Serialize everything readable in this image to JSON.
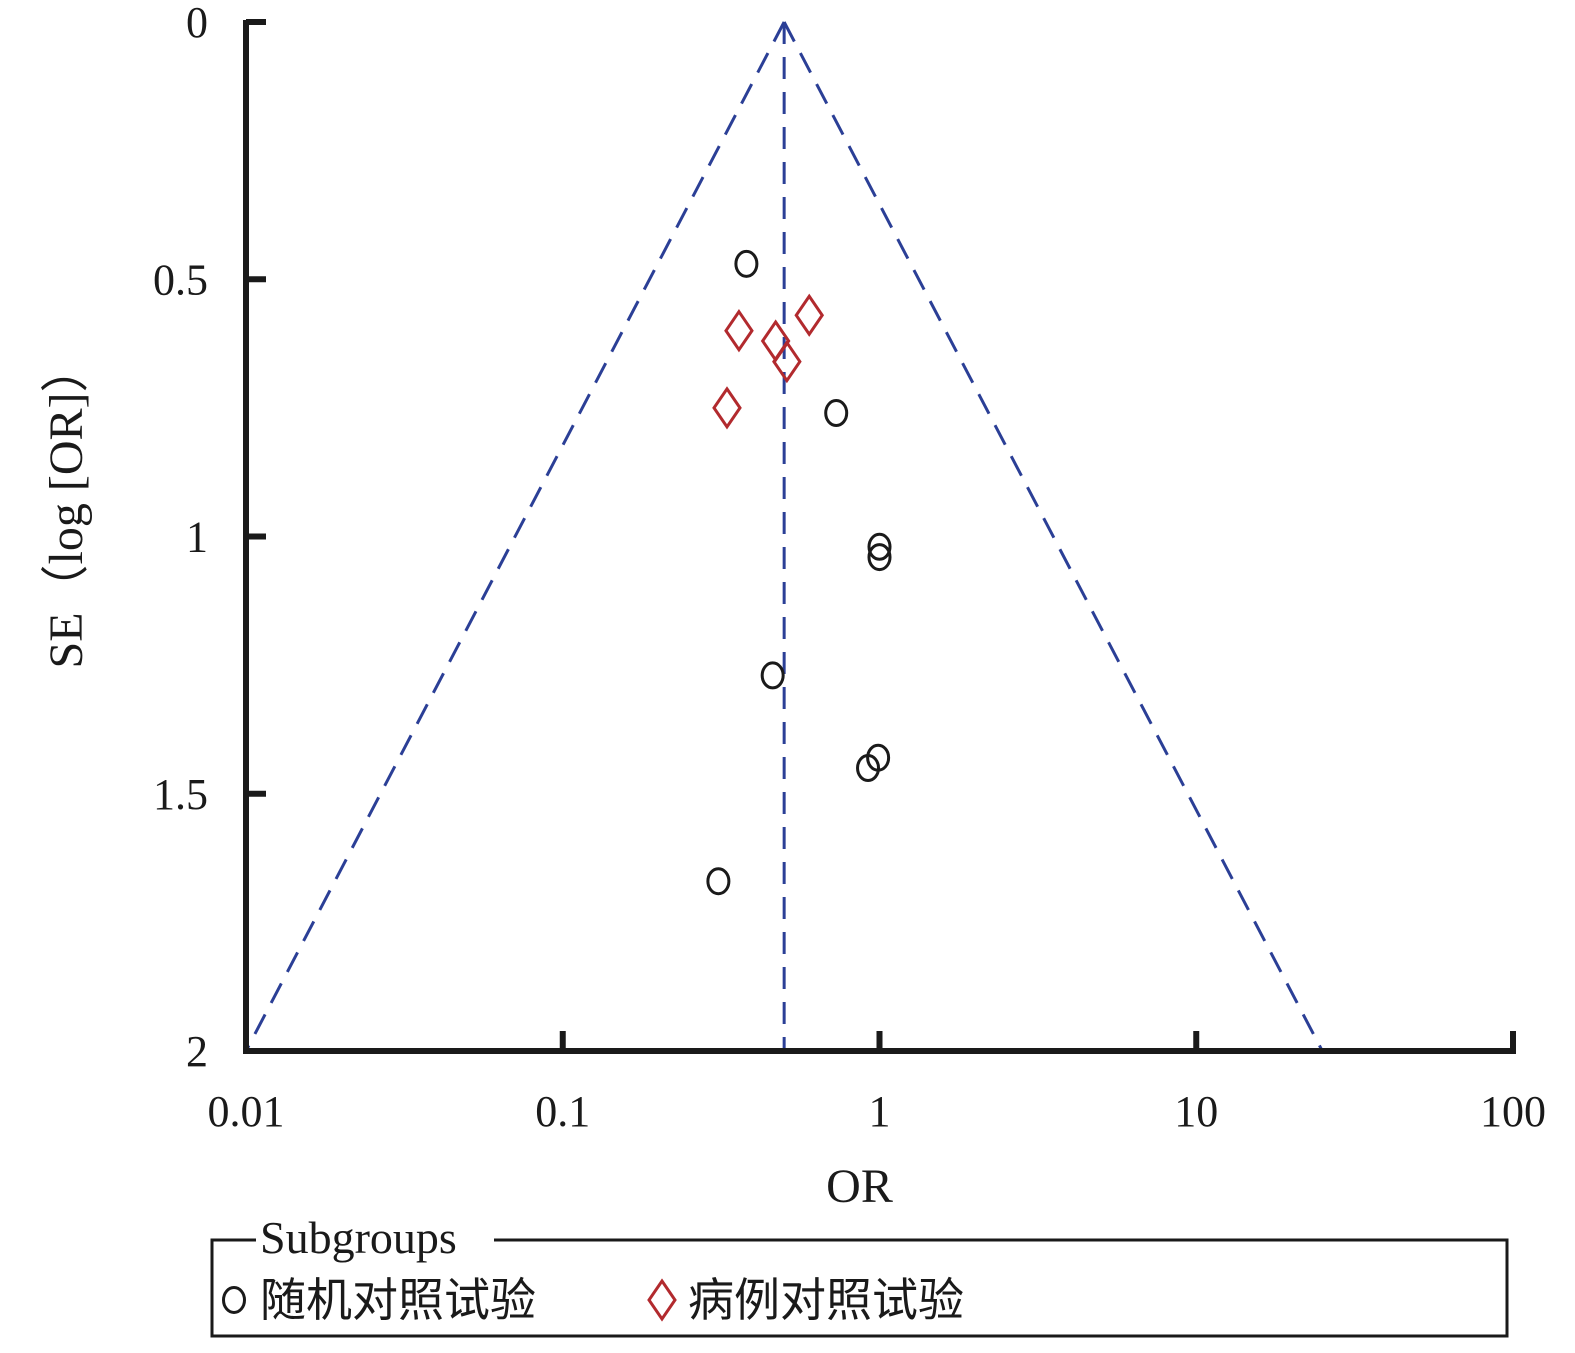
{
  "chart_data": {
    "type": "scatter",
    "title": "",
    "xlabel": "OR",
    "ylabel": "SE（log [OR]）",
    "x_scale": "log",
    "xlim": [
      0.01,
      100
    ],
    "ylim": [
      0,
      2
    ],
    "y_inverted": true,
    "x_ticks": [
      0.01,
      0.1,
      1,
      10,
      100
    ],
    "x_tick_labels": [
      "0.01",
      "0.1",
      "1",
      "10",
      "100"
    ],
    "y_ticks": [
      0,
      0.5,
      1,
      1.5,
      2
    ],
    "y_tick_labels": [
      "0",
      "0.5",
      "1",
      "1.5",
      "2"
    ],
    "pooled_or": 0.5,
    "funnel_limits": {
      "apex_se": 0,
      "bottom_se": 2,
      "left_or_at_bottom": 0.01,
      "right_or_at_bottom": 25
    },
    "legend": {
      "title": "Subgroups",
      "position": "bottom"
    },
    "series": [
      {
        "name": "随机对照试验",
        "marker": "circle",
        "color": "#1a1a1a",
        "points": [
          {
            "x": 0.38,
            "y": 0.47
          },
          {
            "x": 0.73,
            "y": 0.76
          },
          {
            "x": 1.0,
            "y": 1.02
          },
          {
            "x": 1.0,
            "y": 1.04
          },
          {
            "x": 0.46,
            "y": 1.27
          },
          {
            "x": 0.99,
            "y": 1.43
          },
          {
            "x": 0.92,
            "y": 1.45
          },
          {
            "x": 0.31,
            "y": 1.67
          }
        ]
      },
      {
        "name": "病例对照试验",
        "marker": "diamond",
        "color": "#b22a2e",
        "points": [
          {
            "x": 0.6,
            "y": 0.57
          },
          {
            "x": 0.36,
            "y": 0.6
          },
          {
            "x": 0.47,
            "y": 0.62
          },
          {
            "x": 0.51,
            "y": 0.66
          },
          {
            "x": 0.33,
            "y": 0.75
          }
        ]
      }
    ],
    "colors": {
      "funnel_lines": "#2b3f96",
      "axes": "#1a1a1a"
    }
  }
}
